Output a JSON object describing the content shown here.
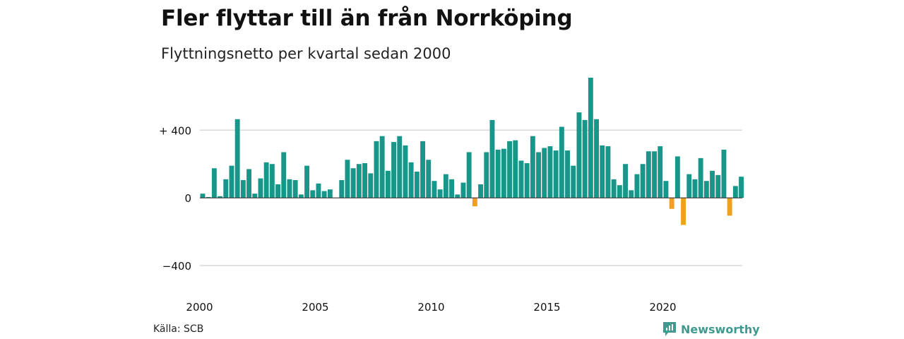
{
  "header": {
    "title": "Fler flyttar till än från Norrköping",
    "subtitle": "Flyttningsnetto per kvartal sedan 2000"
  },
  "footer": {
    "source": "Källa: SCB",
    "brand": "Newsworthy",
    "brand_icon": "newsworthy-logo-icon"
  },
  "colors": {
    "positive": "#18968a",
    "negative": "#f0a01e",
    "grid": "#d9d9d9",
    "baseline": "#333333",
    "brand": "#3f9b8f"
  },
  "chart_data": {
    "type": "bar",
    "title": "Fler flyttar till än från Norrköping",
    "subtitle": "Flyttningsnetto per kvartal sedan 2000",
    "xlabel": "",
    "ylabel": "",
    "ylim": [
      -550,
      710
    ],
    "grid": true,
    "y_ticks": [
      {
        "value": 400,
        "label": "+ 400"
      },
      {
        "value": 0,
        "label": "0"
      },
      {
        "value": -400,
        "label": "−400"
      }
    ],
    "x_ticks": [
      "2000",
      "2005",
      "2010",
      "2015",
      "2020"
    ],
    "start": "2000 Q1",
    "frequency": "quarter",
    "values": [
      25,
      5,
      175,
      10,
      110,
      190,
      465,
      105,
      170,
      25,
      115,
      210,
      200,
      80,
      270,
      110,
      105,
      20,
      190,
      45,
      85,
      40,
      50,
      0,
      105,
      225,
      175,
      200,
      205,
      145,
      335,
      365,
      160,
      330,
      365,
      310,
      210,
      155,
      335,
      225,
      100,
      50,
      140,
      110,
      20,
      90,
      270,
      -50,
      80,
      270,
      460,
      285,
      290,
      335,
      340,
      220,
      205,
      365,
      270,
      295,
      305,
      280,
      420,
      280,
      190,
      505,
      460,
      710,
      465,
      310,
      305,
      110,
      75,
      200,
      45,
      140,
      200,
      275,
      275,
      305,
      100,
      -65,
      245,
      -160,
      140,
      110,
      235,
      100,
      160,
      135,
      285,
      -105,
      70,
      125
    ]
  }
}
